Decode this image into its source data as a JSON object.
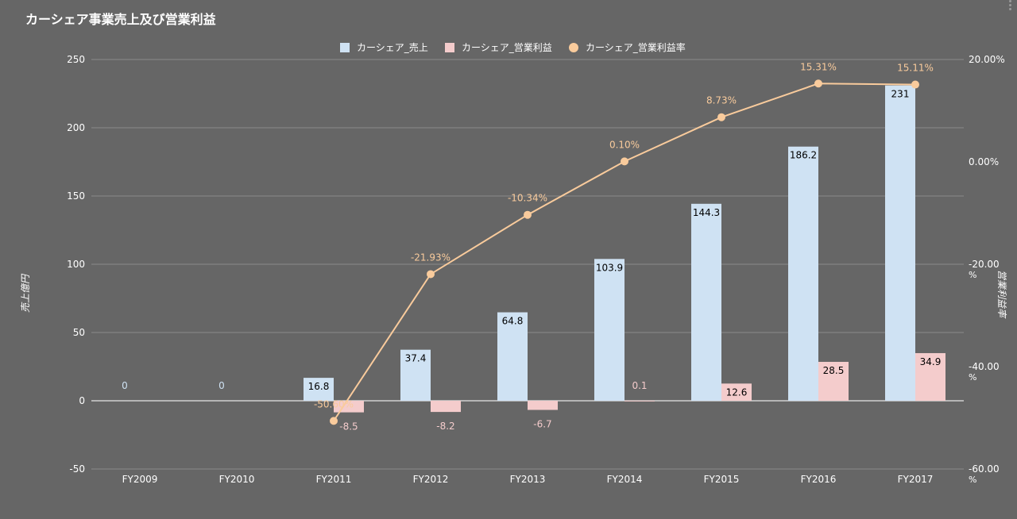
{
  "chart_data": {
    "type": "bar",
    "title": "カーシェア事業売上及び営業利益",
    "categories": [
      "FY2009",
      "FY2010",
      "FY2011",
      "FY2012",
      "FY2013",
      "FY2014",
      "FY2015",
      "FY2016",
      "FY2017"
    ],
    "series": [
      {
        "name": "カーシェア_売上",
        "type": "bar",
        "axis": "left",
        "color": "#cfe2f3",
        "values": [
          0,
          0,
          16.8,
          37.4,
          64.8,
          103.9,
          144.3,
          186.2,
          231
        ],
        "labels": [
          "0",
          "0",
          "16.8",
          "37.4",
          "64.8",
          "103.9",
          "144.3",
          "186.2",
          "231"
        ]
      },
      {
        "name": "カーシェア_営業利益",
        "type": "bar",
        "axis": "left",
        "color": "#f4cccc",
        "values": [
          null,
          null,
          -8.5,
          -8.2,
          -6.7,
          0.1,
          12.6,
          28.5,
          34.9
        ],
        "labels": [
          "",
          "",
          "-8.5",
          "-8.2",
          "-6.7",
          "0.1",
          "12.6",
          "28.5",
          "34.9"
        ]
      },
      {
        "name": "カーシェア_営業利益率",
        "type": "line",
        "axis": "right",
        "color": "#f9cb9c",
        "values": [
          null,
          null,
          -50.6,
          -21.93,
          -10.34,
          0.1,
          8.73,
          15.31,
          15.11
        ],
        "labels": [
          "",
          "",
          "-50.60%",
          "-21.93%",
          "-10.34%",
          "0.10%",
          "8.73%",
          "15.31%",
          "15.11%"
        ]
      }
    ],
    "ylabel": "売上億円",
    "y2label": "営業利益率",
    "ylim": [
      -50,
      250
    ],
    "yticks": [
      "250",
      "200",
      "150",
      "100",
      "50",
      "0",
      "-50"
    ],
    "y2lim": [
      -60,
      20
    ],
    "y2ticks": [
      {
        "value": "20.00%",
        "unit": ""
      },
      {
        "value": "0.00%",
        "unit": ""
      },
      {
        "value": "-20.00",
        "unit": "%"
      },
      {
        "value": "-40.00",
        "unit": "%"
      },
      {
        "value": "-60.00",
        "unit": "%"
      }
    ],
    "grid": true,
    "legend": "top"
  }
}
